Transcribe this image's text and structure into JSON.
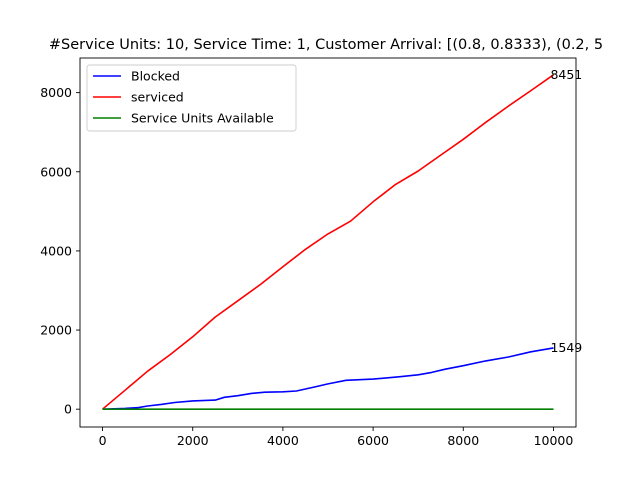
{
  "chart_data": {
    "type": "line",
    "title": "#Service Units: 10, Service Time: 1, Customer Arrival: [(0.8, 0.8333), (0.2, 5",
    "xlabel": "",
    "ylabel": "",
    "xlim": [
      -500,
      10500
    ],
    "ylim": [
      -450,
      8875
    ],
    "xticks": [
      0,
      2000,
      4000,
      6000,
      8000,
      10000
    ],
    "yticks": [
      0,
      2000,
      4000,
      6000,
      8000
    ],
    "xtick_labels": [
      "0",
      "2000",
      "4000",
      "6000",
      "8000",
      "10000"
    ],
    "ytick_labels": [
      "0",
      "2000",
      "4000",
      "6000",
      "8000"
    ],
    "grid": false,
    "legend_position": "top-left",
    "series": [
      {
        "name": "Blocked",
        "color": "#0000ff",
        "x": [
          0,
          500,
          800,
          1000,
          1300,
          1600,
          2000,
          2500,
          2700,
          3000,
          3300,
          3600,
          4000,
          4300,
          4700,
          5000,
          5400,
          6000,
          6600,
          7000,
          7300,
          7600,
          8000,
          8500,
          9000,
          9500,
          10000
        ],
        "y": [
          0,
          20,
          40,
          80,
          120,
          170,
          210,
          230,
          300,
          340,
          400,
          430,
          440,
          460,
          560,
          640,
          730,
          760,
          820,
          870,
          930,
          1010,
          1100,
          1220,
          1320,
          1450,
          1549
        ]
      },
      {
        "name": "serviced",
        "color": "#ff0000",
        "x": [
          0,
          500,
          1000,
          1500,
          2000,
          2500,
          3000,
          3500,
          4000,
          4500,
          5000,
          5500,
          6000,
          6500,
          7000,
          7500,
          8000,
          8500,
          9000,
          9500,
          10000
        ],
        "y": [
          0,
          480,
          960,
          1380,
          1830,
          2330,
          2740,
          3150,
          3600,
          4040,
          4430,
          4750,
          5240,
          5680,
          6020,
          6420,
          6820,
          7250,
          7660,
          8050,
          8451
        ]
      },
      {
        "name": "Service Units Available",
        "color": "#008000",
        "x": [
          0,
          10000
        ],
        "y": [
          1,
          1
        ]
      }
    ],
    "annotations": [
      {
        "text": "8451",
        "x": 10000,
        "y": 8451
      },
      {
        "text": "1549",
        "x": 10000,
        "y": 1549
      }
    ]
  }
}
